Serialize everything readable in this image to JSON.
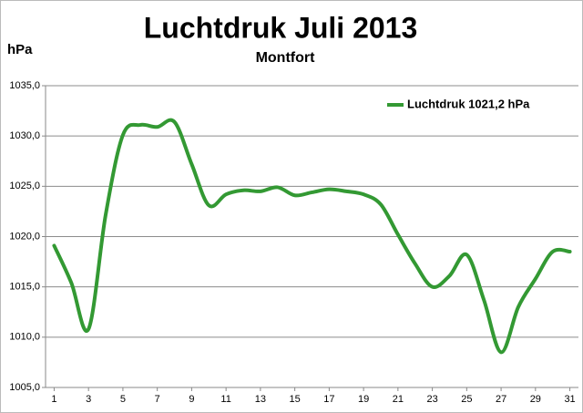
{
  "chart_data": {
    "type": "line",
    "title": "Luchtdruk Juli 2013",
    "subtitle": "Montfort",
    "y_axis_label": "hPa",
    "x": [
      1,
      2,
      3,
      4,
      5,
      6,
      7,
      8,
      9,
      10,
      11,
      12,
      13,
      14,
      15,
      16,
      17,
      18,
      19,
      20,
      21,
      22,
      23,
      24,
      25,
      26,
      27,
      28,
      29,
      30,
      31
    ],
    "xlim": [
      0.5,
      31.5
    ],
    "xticks": [
      1,
      3,
      5,
      7,
      9,
      11,
      13,
      15,
      17,
      19,
      21,
      23,
      25,
      27,
      29,
      31
    ],
    "ylim": [
      1005,
      1035
    ],
    "yticks": [
      {
        "value": 1005,
        "label": "1005,0"
      },
      {
        "value": 1010,
        "label": "1010,0"
      },
      {
        "value": 1015,
        "label": "1015,0"
      },
      {
        "value": 1020,
        "label": "1020,0"
      },
      {
        "value": 1025,
        "label": "1025,0"
      },
      {
        "value": 1030,
        "label": "1030,0"
      },
      {
        "value": 1035,
        "label": "1035,0"
      }
    ],
    "grid": true,
    "legend": "top-right",
    "series": [
      {
        "name": "Luchtdruk 1021,2 hPa",
        "color": "#339933",
        "values": [
          1019.1,
          1015.4,
          1010.8,
          1022.2,
          1030.1,
          1031.1,
          1030.9,
          1031.4,
          1027.2,
          1023.1,
          1024.2,
          1024.6,
          1024.5,
          1024.9,
          1024.1,
          1024.4,
          1024.7,
          1024.5,
          1024.2,
          1023.2,
          1020.2,
          1017.3,
          1015.0,
          1016.1,
          1018.2,
          1013.7,
          1008.5,
          1013.0,
          1015.8,
          1018.5,
          1018.5
        ]
      }
    ]
  }
}
